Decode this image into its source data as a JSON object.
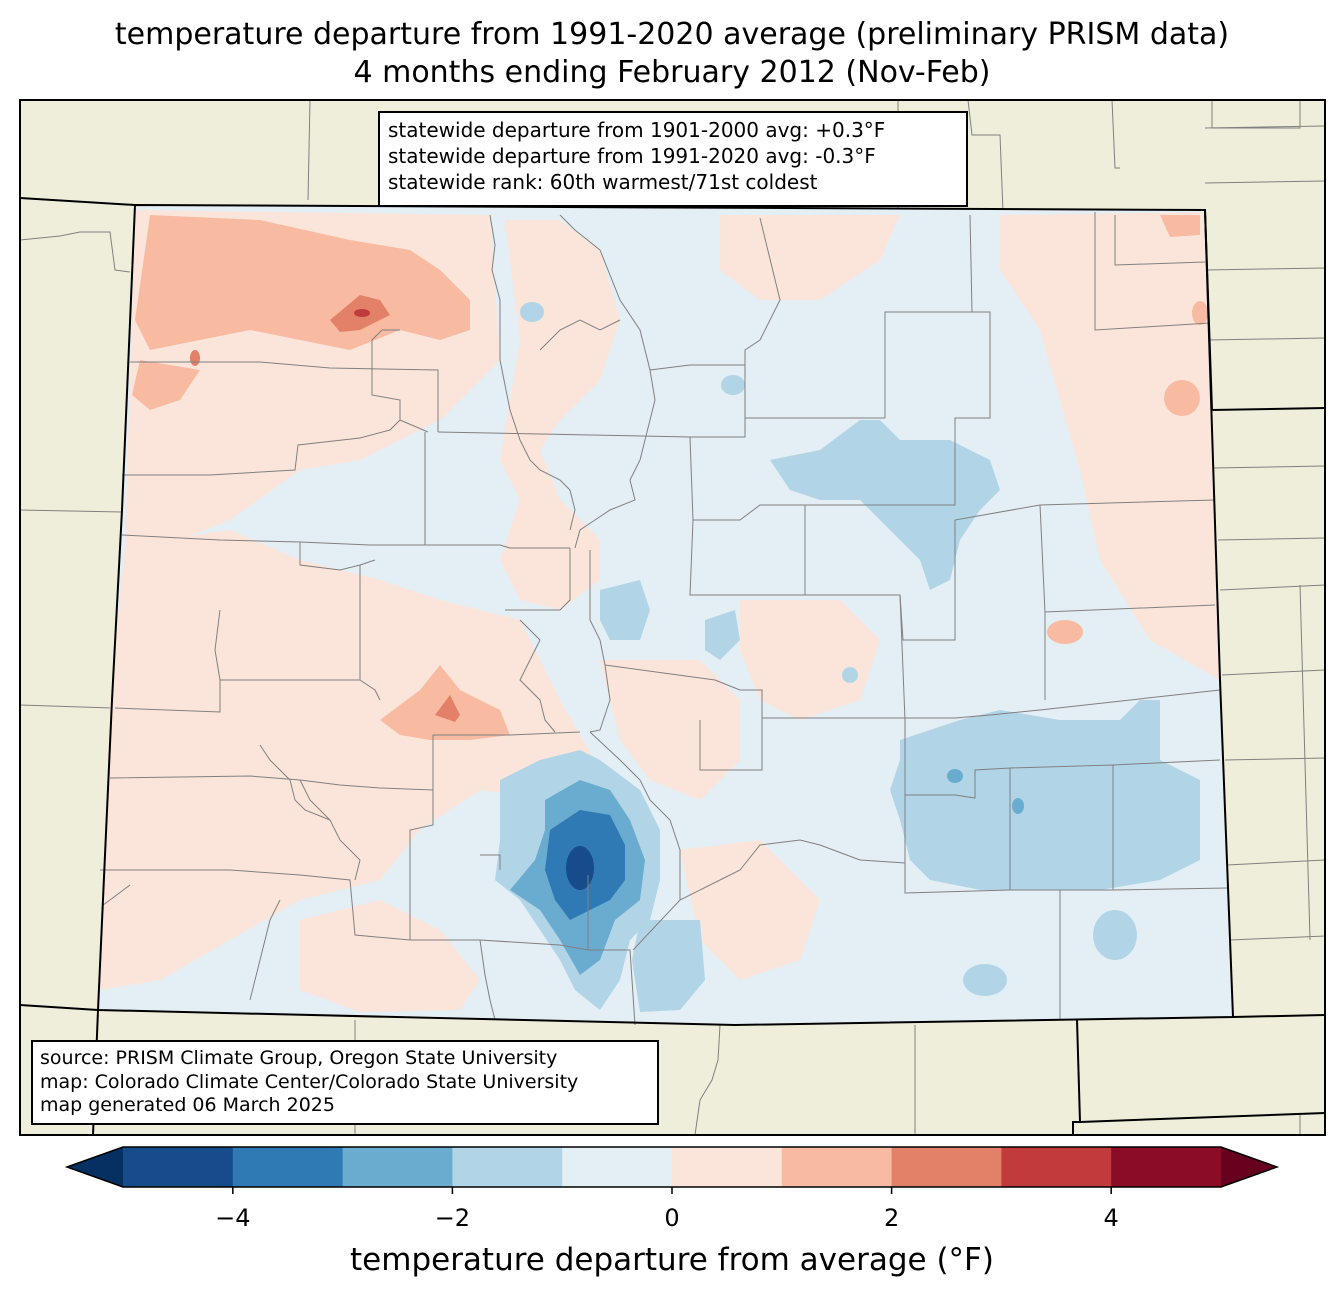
{
  "title": {
    "line1": "temperature departure from 1991-2020 average (preliminary PRISM data)",
    "line2": "4 months ending February 2012 (Nov-Feb)"
  },
  "stats": {
    "line1": "statewide departure from 1901-2000 avg: +0.3°F",
    "line2": "statewide departure from 1991-2020 avg: -0.3°F",
    "line3": "statewide rank: 60th warmest/71st coldest"
  },
  "source": {
    "line1": "source: PRISM Climate Group, Oregon State University",
    "line2": "map: Colorado Climate Center/Colorado State University",
    "line3": "map generated 06 March 2025"
  },
  "colorbar": {
    "label": "temperature departure from average (°F)",
    "ticks": [
      {
        "value": -4,
        "text": "−4"
      },
      {
        "value": -2,
        "text": "−2"
      },
      {
        "value": 0,
        "text": "0"
      },
      {
        "value": 2,
        "text": "2"
      },
      {
        "value": 4,
        "text": "4"
      }
    ],
    "min": -5,
    "max": 5,
    "bins": [
      {
        "from": -5,
        "to": -4,
        "color": "#154c89"
      },
      {
        "from": -4,
        "to": -3,
        "color": "#2f79b5"
      },
      {
        "from": -3,
        "to": -2,
        "color": "#6aacd0"
      },
      {
        "from": -2,
        "to": -1,
        "color": "#b1d5e7"
      },
      {
        "from": -1,
        "to": 0,
        "color": "#e4eef5"
      },
      {
        "from": 0,
        "to": 1,
        "color": "#fbe5da"
      },
      {
        "from": 1,
        "to": 2,
        "color": "#f8bba1"
      },
      {
        "from": 2,
        "to": 3,
        "color": "#e28068"
      },
      {
        "from": 3,
        "to": 4,
        "color": "#c13b3d"
      },
      {
        "from": 4,
        "to": 5,
        "color": "#8a0c26"
      }
    ],
    "under_color": "#053061",
    "over_color": "#67001f"
  },
  "colors": {
    "land": "#efeedb",
    "state_border": "#000000",
    "county_border": "#808080"
  }
}
